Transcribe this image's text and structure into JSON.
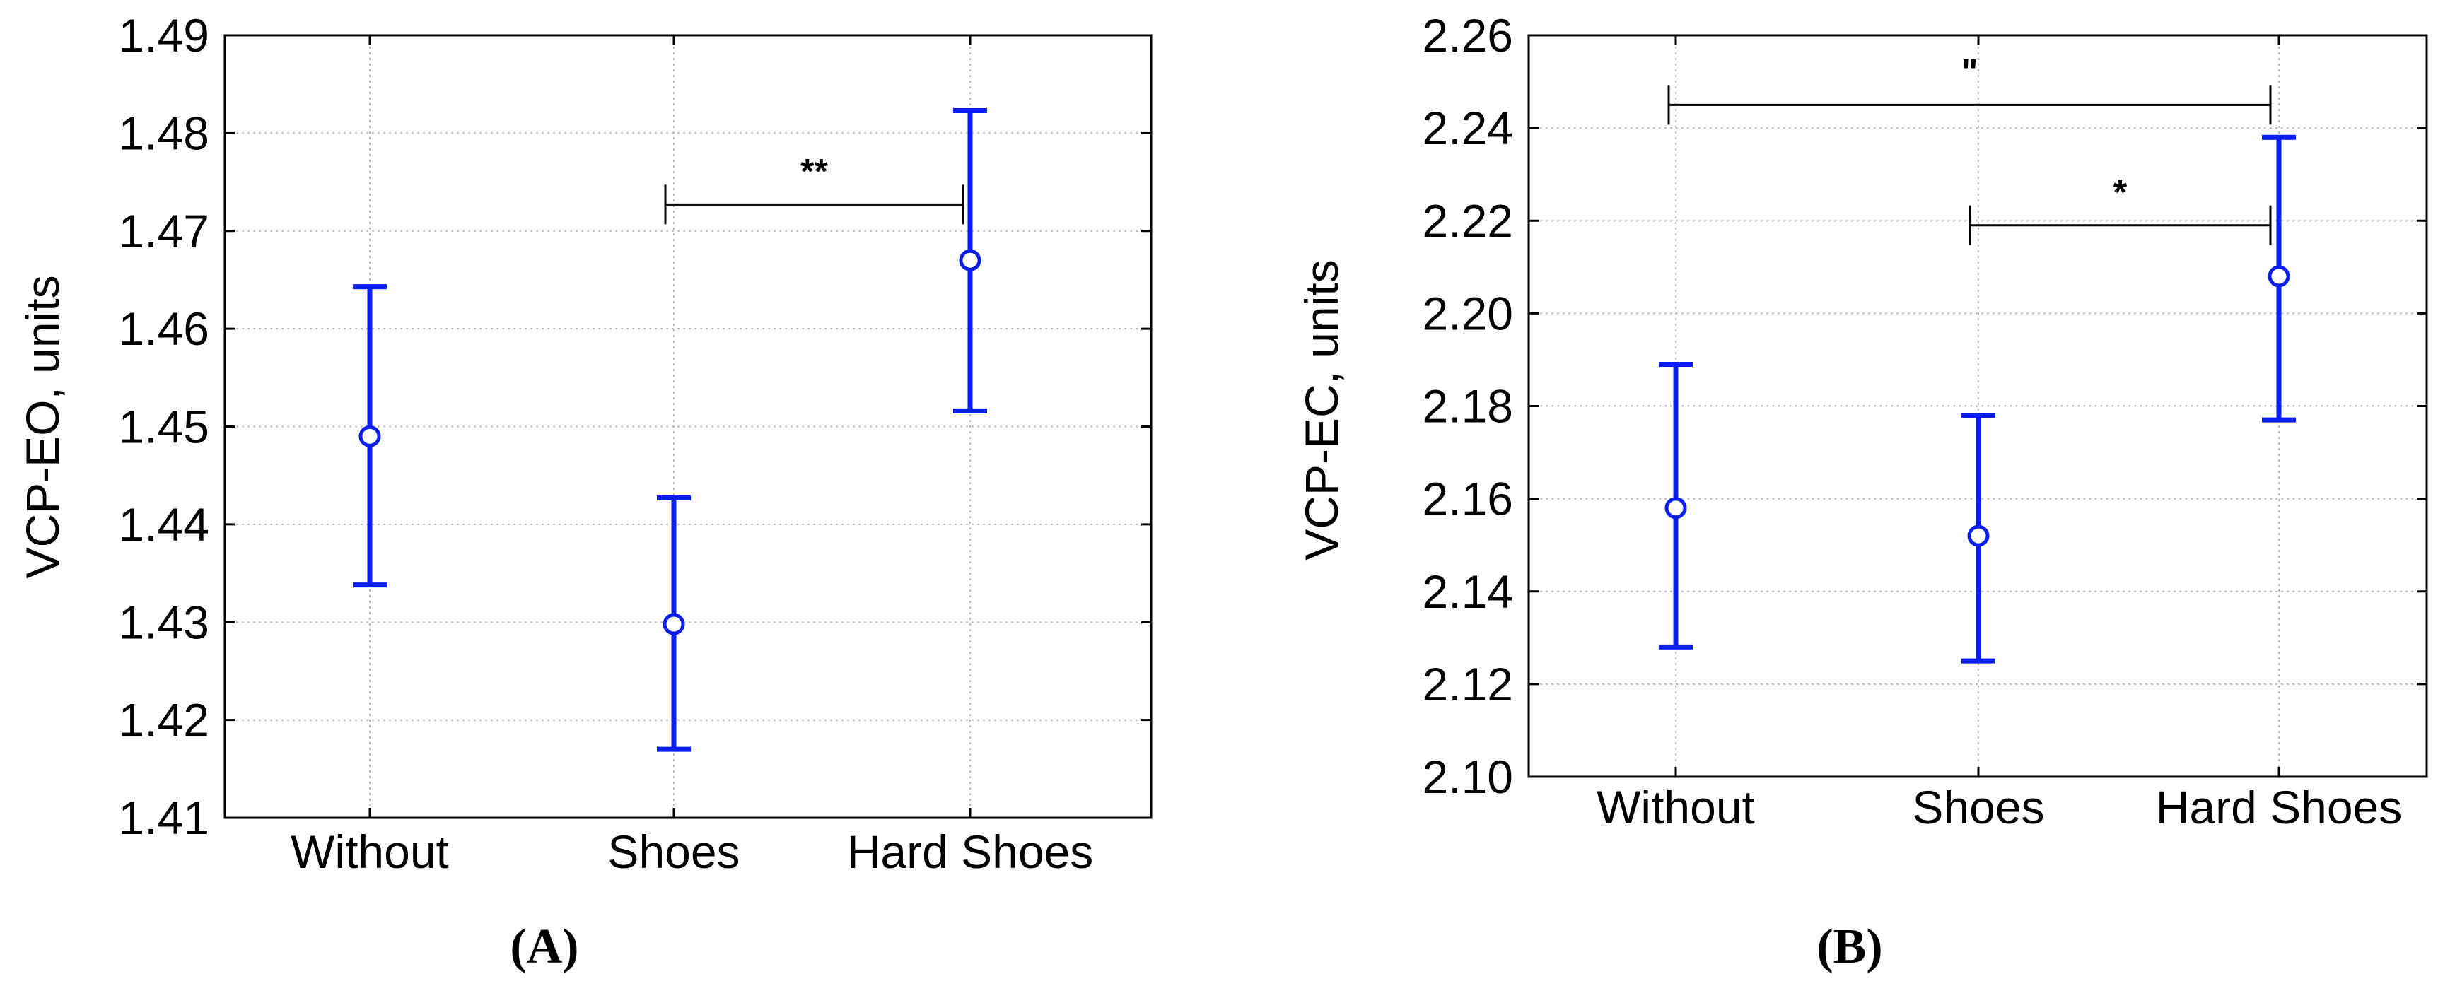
{
  "chart_data": [
    {
      "type": "scatter",
      "panel_label": "(A)",
      "ylabel": "VCP-EO, units",
      "xlabel": "",
      "categories": [
        "Without",
        "Shoes",
        "Hard Shoes"
      ],
      "ylim": [
        1.41,
        1.49
      ],
      "yticks": [
        "1.41",
        "1.42",
        "1.43",
        "1.44",
        "1.45",
        "1.46",
        "1.47",
        "1.48",
        "1.49"
      ],
      "grid": true,
      "series": [
        {
          "values": [
            1.449,
            1.4298,
            1.467
          ],
          "lower": [
            1.4338,
            1.417,
            1.4516
          ],
          "upper": [
            1.4643,
            1.4427,
            1.4823
          ],
          "color": "#0a1ef0"
        }
      ],
      "annotations": [
        {
          "text": "**",
          "from": 1,
          "to": 2,
          "y": 1.4727
        }
      ]
    },
    {
      "type": "scatter",
      "panel_label": "(B)",
      "ylabel": "VCP-EC, units",
      "xlabel": "",
      "categories": [
        "Without",
        "Shoes",
        "Hard Shoes"
      ],
      "ylim": [
        2.1,
        2.26
      ],
      "yticks": [
        "2.10",
        "2.12",
        "2.14",
        "2.16",
        "2.18",
        "2.20",
        "2.22",
        "2.24",
        "2.26"
      ],
      "grid": true,
      "series": [
        {
          "values": [
            2.158,
            2.152,
            2.208
          ],
          "lower": [
            2.128,
            2.125,
            2.177
          ],
          "upper": [
            2.189,
            2.178,
            2.238
          ],
          "color": "#0a1ef0"
        }
      ],
      "annotations": [
        {
          "text": "\"",
          "from": 0,
          "to": 2,
          "y": 2.245
        },
        {
          "text": "*",
          "from": 1,
          "to": 2,
          "y": 2.219
        }
      ]
    }
  ]
}
